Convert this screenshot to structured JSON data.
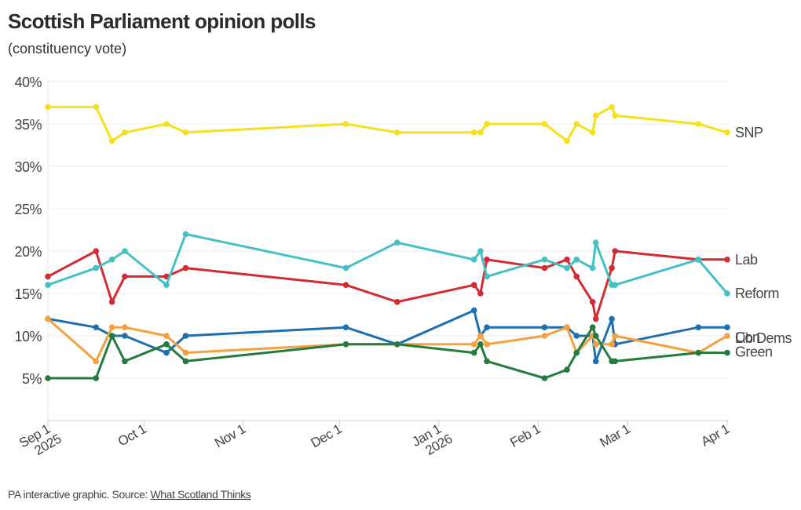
{
  "header": {
    "title": "Scottish Parliament opinion polls",
    "subtitle": "(constituency vote)"
  },
  "footer": {
    "prefix": "PA interactive graphic. Source: ",
    "source_link": "What Scotland Thinks"
  },
  "chart_data": {
    "type": "line",
    "title": "Scottish Parliament opinion polls",
    "subtitle": "(constituency vote)",
    "xlabel": "",
    "ylabel": "",
    "ylim": [
      0,
      40
    ],
    "xlim": [
      "2025-09-01",
      "2026-04-01"
    ],
    "grid": true,
    "legend": "right-end-labels",
    "y_ticks": [
      {
        "value": 5,
        "label": "5%"
      },
      {
        "value": 10,
        "label": "10%"
      },
      {
        "value": 15,
        "label": "15%"
      },
      {
        "value": 20,
        "label": "20%"
      },
      {
        "value": 25,
        "label": "25%"
      },
      {
        "value": 30,
        "label": "30%"
      },
      {
        "value": 35,
        "label": "35%"
      },
      {
        "value": 40,
        "label": "40%"
      }
    ],
    "x_ticks": [
      {
        "date": "2025-09-01",
        "label": "Sep 1",
        "sublabel": "2025"
      },
      {
        "date": "2025-10-01",
        "label": "Oct 1",
        "sublabel": ""
      },
      {
        "date": "2025-11-01",
        "label": "Nov 1",
        "sublabel": ""
      },
      {
        "date": "2025-12-01",
        "label": "Dec 1",
        "sublabel": ""
      },
      {
        "date": "2026-01-01",
        "label": "Jan 1",
        "sublabel": "2026"
      },
      {
        "date": "2026-02-01",
        "label": "Feb 1",
        "sublabel": ""
      },
      {
        "date": "2026-03-01",
        "label": "Mar 1",
        "sublabel": ""
      },
      {
        "date": "2026-04-01",
        "label": "Apr 1",
        "sublabel": ""
      }
    ],
    "x": [
      "2025-09-01",
      "2025-09-16",
      "2025-09-21",
      "2025-09-25",
      "2025-10-08",
      "2025-10-14",
      "2025-12-03",
      "2025-12-19",
      "2026-01-12",
      "2026-01-14",
      "2026-01-16",
      "2026-02-03",
      "2026-02-10",
      "2026-02-13",
      "2026-02-18",
      "2026-02-19",
      "2026-02-24",
      "2026-02-25",
      "2026-03-23",
      "2026-04-01"
    ],
    "series": [
      {
        "name": "SNP",
        "color": "#f5e11b",
        "label_offset": 0,
        "values": [
          37,
          37,
          33,
          34,
          35,
          34,
          35,
          34,
          34,
          34,
          35,
          35,
          33,
          35,
          34,
          36,
          37,
          36,
          35,
          34
        ]
      },
      {
        "name": "Lab",
        "color": "#d42a34",
        "label_offset": 0,
        "values": [
          17,
          20,
          14,
          17,
          17,
          18,
          16,
          14,
          16,
          15,
          19,
          18,
          19,
          17,
          14,
          12,
          18,
          20,
          19,
          19
        ]
      },
      {
        "name": "Reform",
        "color": "#45c1c3",
        "label_offset": 0,
        "values": [
          16,
          18,
          19,
          20,
          16,
          22,
          18,
          21,
          19,
          20,
          17,
          19,
          18,
          19,
          18,
          21,
          16,
          16,
          19,
          15
        ]
      },
      {
        "name": "Con",
        "color": "#1f6fb0",
        "label_offset": -1.2,
        "values": [
          12,
          11,
          10,
          10,
          8,
          10,
          11,
          9,
          13,
          10,
          11,
          11,
          11,
          10,
          10,
          7,
          12,
          9,
          11,
          11
        ]
      },
      {
        "name": "Lib Dems",
        "color": "#f4a040",
        "label_offset": -0.3,
        "values": [
          12,
          7,
          11,
          11,
          10,
          8,
          9,
          9,
          9,
          10,
          9,
          10,
          11,
          8,
          10,
          9,
          9,
          10,
          8,
          10
        ]
      },
      {
        "name": "Green",
        "color": "#257a3e",
        "label_offset": 0.1,
        "values": [
          5,
          5,
          10,
          7,
          9,
          7,
          9,
          9,
          8,
          9,
          7,
          5,
          6,
          8,
          11,
          10,
          7,
          7,
          8,
          8
        ]
      }
    ]
  }
}
